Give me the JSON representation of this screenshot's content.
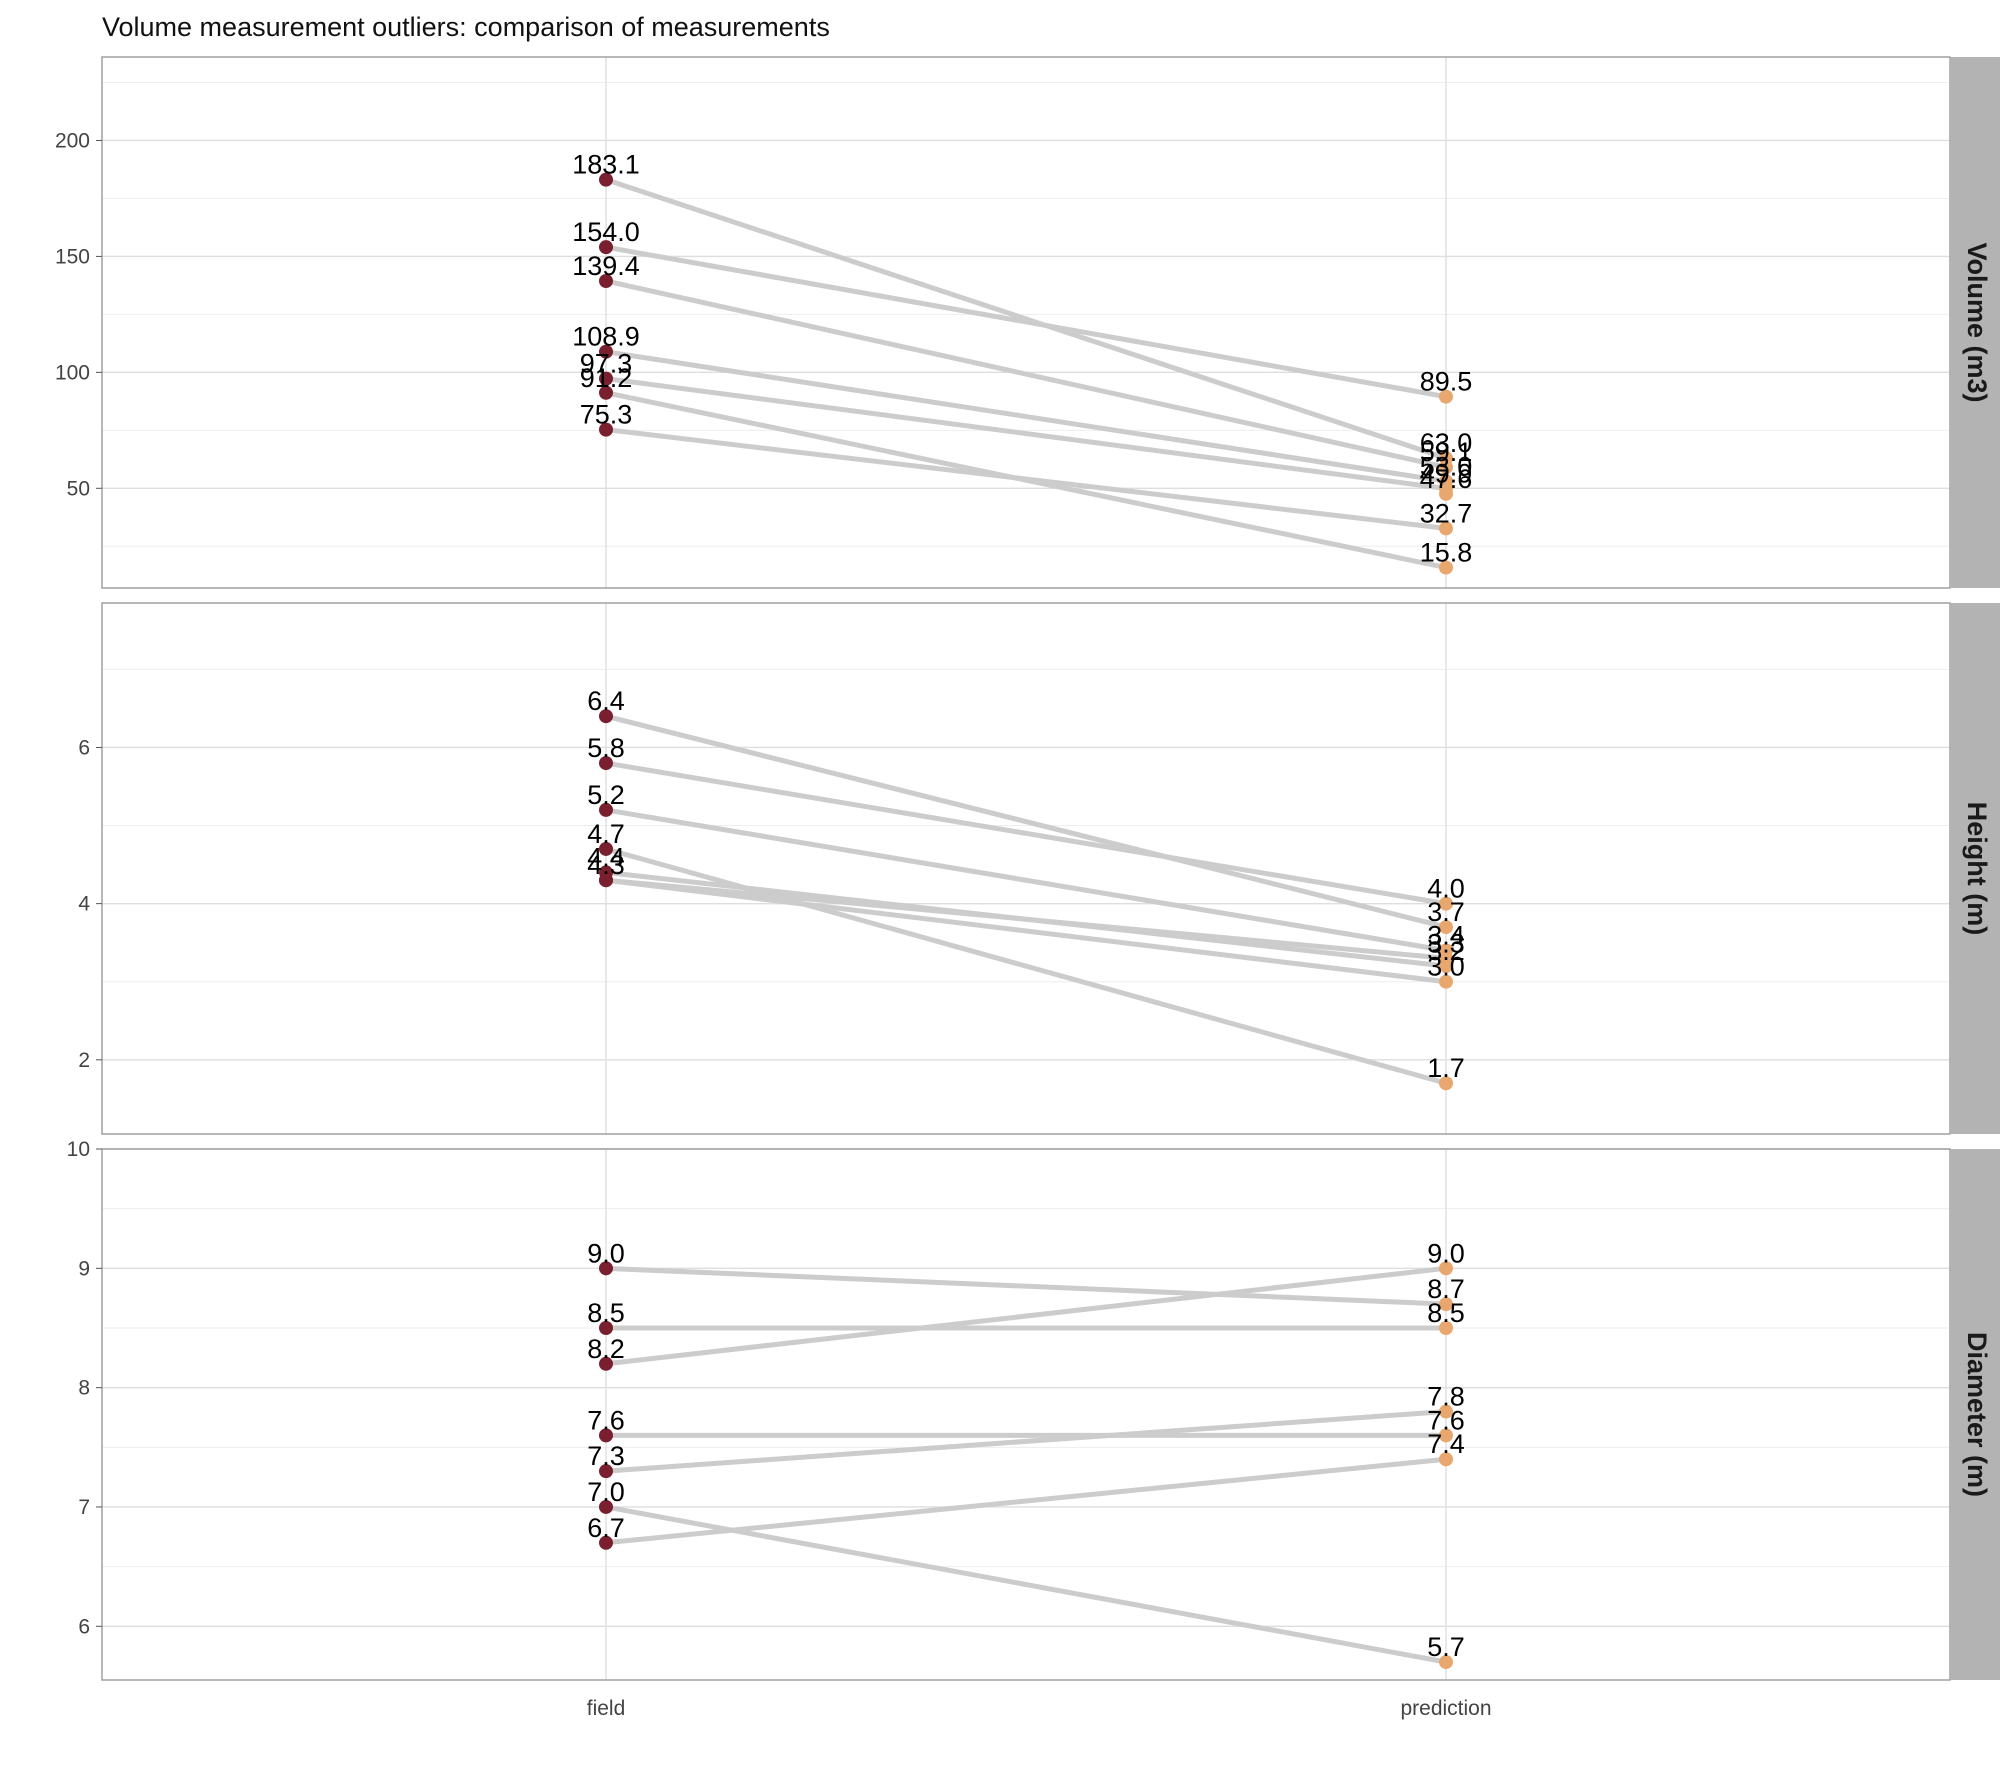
{
  "title": "Volume measurement outliers: comparison of measurements",
  "colors": {
    "field_point": "#7a1f2e",
    "prediction_point": "#e8a76f",
    "connector": "#cccccc",
    "strip": "#b3b3b3",
    "grid_major": "#dedede",
    "grid_minor": "#eeeeee",
    "panel_border": "#9a9a9a"
  },
  "chart_data": [
    {
      "type": "line",
      "facet": "Volume (m3)",
      "categories": [
        "field",
        "prediction"
      ],
      "yticks": [
        50,
        100,
        150,
        200
      ],
      "ylim": [
        7,
        236
      ],
      "grid": true,
      "pairs": [
        {
          "field": 183.1,
          "prediction": 63.0
        },
        {
          "field": 154.0,
          "prediction": 89.5
        },
        {
          "field": 139.4,
          "prediction": 59.1
        },
        {
          "field": 108.9,
          "prediction": 53.0
        },
        {
          "field": 97.3,
          "prediction": 49.9
        },
        {
          "field": 91.2,
          "prediction": 15.8
        },
        {
          "field": 75.3,
          "prediction": 32.7
        }
      ],
      "field_labels": [
        "183.1",
        "154.0",
        "139.4",
        "108.9",
        "97.3",
        "91.2",
        "75.3"
      ],
      "prediction_labels": [
        "63.0",
        "89.5",
        "59.1",
        "53.0",
        "49.9",
        "15.8",
        "32.7"
      ],
      "extra_prediction": {
        "value": 47.6,
        "label": "47.6"
      }
    },
    {
      "type": "line",
      "facet": "Height (m)",
      "categories": [
        "field",
        "prediction"
      ],
      "yticks": [
        2,
        4,
        6
      ],
      "ylim": [
        1.05,
        7.85
      ],
      "grid": true,
      "pairs": [
        {
          "field": 6.4,
          "prediction": 3.7
        },
        {
          "field": 5.8,
          "prediction": 4.0
        },
        {
          "field": 5.2,
          "prediction": 3.4
        },
        {
          "field": 4.7,
          "prediction": 1.7
        },
        {
          "field": 4.4,
          "prediction": 3.2
        },
        {
          "field": 4.3,
          "prediction": 3.0
        },
        {
          "field": 4.3,
          "prediction": 3.3
        }
      ],
      "field_labels": [
        "6.4",
        "5.8",
        "5.2",
        "4.7",
        "4.4",
        "4.3",
        ""
      ],
      "prediction_labels": [
        "3.7",
        "4.0",
        "3.4",
        "1.7",
        "3.2",
        "3.0",
        "3.3"
      ]
    },
    {
      "type": "line",
      "facet": "Diameter (m)",
      "categories": [
        "field",
        "prediction"
      ],
      "yticks": [
        6,
        7,
        8,
        9,
        10
      ],
      "ylim": [
        5.55,
        10.0
      ],
      "grid": true,
      "pairs": [
        {
          "field": 9.0,
          "prediction": 8.7
        },
        {
          "field": 8.5,
          "prediction": 8.5
        },
        {
          "field": 8.2,
          "prediction": 9.0
        },
        {
          "field": 7.6,
          "prediction": 7.6
        },
        {
          "field": 7.3,
          "prediction": 7.8
        },
        {
          "field": 7.0,
          "prediction": 5.7
        },
        {
          "field": 6.7,
          "prediction": 7.4
        }
      ],
      "field_labels": [
        "9.0",
        "8.5",
        "8.2",
        "7.6",
        "7.3",
        "7.0",
        "6.7"
      ],
      "prediction_labels": [
        "8.7",
        "8.5",
        "9.0",
        "7.6",
        "7.8",
        "5.7",
        "7.4"
      ]
    }
  ]
}
